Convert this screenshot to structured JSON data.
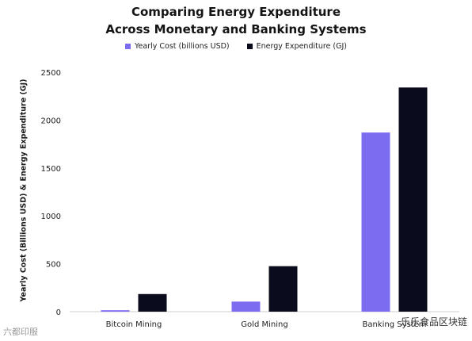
{
  "watermarks": {
    "left": "六都印服",
    "right": "乐乐食品区块链"
  },
  "chart_data": {
    "type": "bar",
    "title": "Comparing Energy Expenditure",
    "subtitle": "Across Monetary and Banking Systems",
    "xlabel": "",
    "ylabel": "Yearly Cost (Billions USD) & Energy Expenditure (GJ)",
    "categories": [
      "Bitcoin Mining",
      "Gold Mining",
      "Banking System"
    ],
    "series": [
      {
        "name": "Yearly Cost (billions USD)",
        "color": "#7b6cf0",
        "values": [
          15,
          105,
          1870
        ]
      },
      {
        "name": "Energy Expenditure (GJ)",
        "color": "#0b0b1e",
        "values": [
          184,
          475,
          2340
        ]
      }
    ],
    "ylim": [
      0,
      2500
    ],
    "yticks": [
      0,
      500,
      1000,
      1500,
      2000,
      2500
    ],
    "grid": false,
    "legend_position": "top"
  }
}
